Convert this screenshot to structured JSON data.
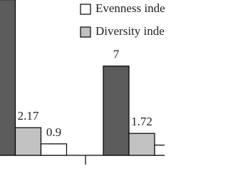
{
  "chart_data": {
    "type": "bar",
    "series": [
      {
        "color": "#5c5c5c",
        "values": [
          12.2,
          7
        ],
        "value_labels": [
          null,
          "7"
        ]
      },
      {
        "name": "Diversity index",
        "color": "#c2c2c2",
        "values": [
          2.17,
          1.72
        ],
        "value_labels": [
          "2.17",
          "1.72"
        ]
      },
      {
        "name": "Evenness index",
        "color": "#ffffff",
        "values": [
          0.9,
          0.8
        ],
        "value_labels": [
          "0.9",
          null
        ]
      }
    ],
    "ylim": [
      0,
      12.18
    ]
  }
}
